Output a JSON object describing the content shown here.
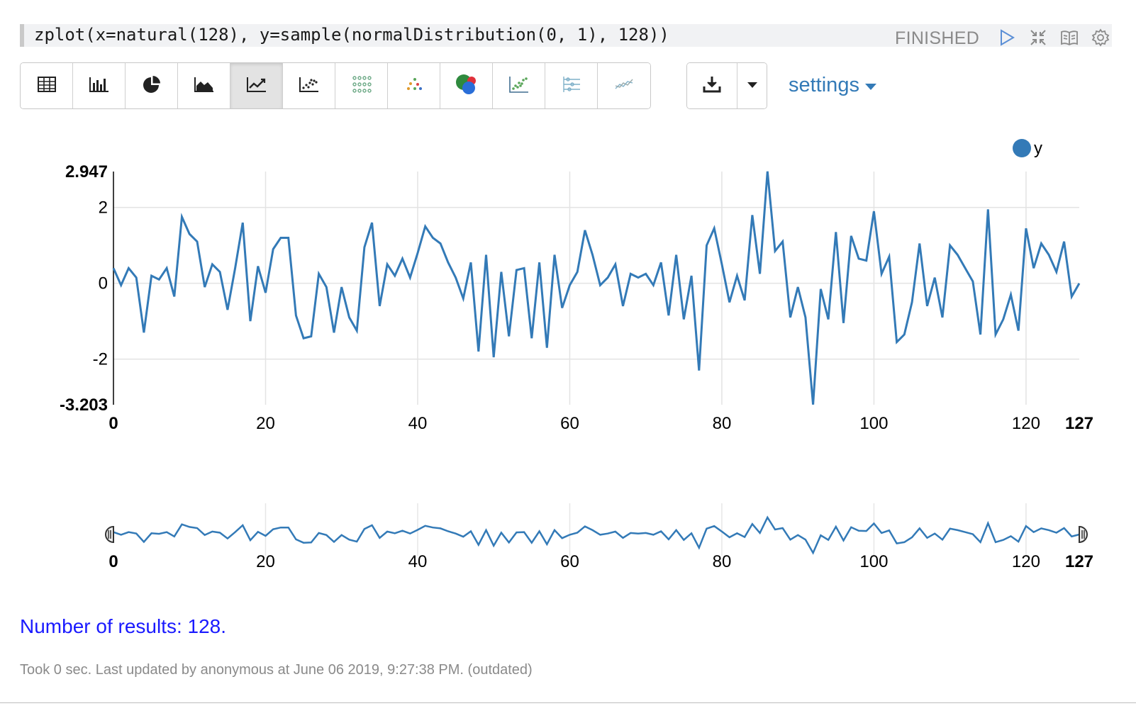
{
  "paragraph": {
    "code": "zplot(x=natural(128), y=sample(normalDistribution(0, 1), 128))",
    "status": "FINISHED",
    "icons": [
      "run-icon",
      "collapse-icon",
      "book-icon",
      "gear-icon"
    ]
  },
  "toolbar": {
    "viz_buttons": [
      {
        "name": "table-icon",
        "active": false
      },
      {
        "name": "bar-chart-icon",
        "active": false
      },
      {
        "name": "pie-chart-icon",
        "active": false
      },
      {
        "name": "area-chart-icon",
        "active": false
      },
      {
        "name": "line-chart-icon",
        "active": true
      },
      {
        "name": "scatter-chart-icon",
        "active": false
      },
      {
        "name": "heatmap-icon",
        "active": false
      },
      {
        "name": "dot-cluster-icon",
        "active": false
      },
      {
        "name": "bubble-chart-icon",
        "active": false
      },
      {
        "name": "scatter-trend-icon",
        "active": false
      },
      {
        "name": "parallel-coords-icon",
        "active": false
      },
      {
        "name": "multi-line-icon",
        "active": false
      }
    ],
    "download_icon": "download-icon",
    "dropdown_icon": "caret-down-icon",
    "settings_label": "settings"
  },
  "chart_data": {
    "type": "line",
    "legend": {
      "series_name": "y",
      "color": "#337ab7",
      "placement": "top-right"
    },
    "xlim": [
      0,
      127
    ],
    "ylim": [
      -3.203,
      2.947
    ],
    "x_ticks": [
      0,
      20,
      40,
      60,
      80,
      100,
      120,
      127
    ],
    "y_ticks": [
      -3.203,
      -2,
      0,
      2,
      2.947
    ],
    "grid": true,
    "navigator": true,
    "series": [
      {
        "name": "y",
        "color": "#337ab7",
        "x": [
          0,
          1,
          2,
          3,
          4,
          5,
          6,
          7,
          8,
          9,
          10,
          11,
          12,
          13,
          14,
          15,
          16,
          17,
          18,
          19,
          20,
          21,
          22,
          23,
          24,
          25,
          26,
          27,
          28,
          29,
          30,
          31,
          32,
          33,
          34,
          35,
          36,
          37,
          38,
          39,
          40,
          41,
          42,
          43,
          44,
          45,
          46,
          47,
          48,
          49,
          50,
          51,
          52,
          53,
          54,
          55,
          56,
          57,
          58,
          59,
          60,
          61,
          62,
          63,
          64,
          65,
          66,
          67,
          68,
          69,
          70,
          71,
          72,
          73,
          74,
          75,
          76,
          77,
          78,
          79,
          80,
          81,
          82,
          83,
          84,
          85,
          86,
          87,
          88,
          89,
          90,
          91,
          92,
          93,
          94,
          95,
          96,
          97,
          98,
          99,
          100,
          101,
          102,
          103,
          104,
          105,
          106,
          107,
          108,
          109,
          110,
          111,
          112,
          113,
          114,
          115,
          116,
          117,
          118,
          119,
          120,
          121,
          122,
          123,
          124,
          125,
          126,
          127
        ],
        "values": [
          0.4,
          -0.05,
          0.4,
          0.15,
          -1.3,
          0.2,
          0.1,
          0.4,
          -0.35,
          1.75,
          1.3,
          1.1,
          -0.1,
          0.5,
          0.3,
          -0.7,
          0.4,
          1.6,
          -1.0,
          0.45,
          -0.25,
          0.9,
          1.2,
          1.2,
          -0.85,
          -1.45,
          -1.4,
          0.25,
          -0.1,
          -1.3,
          -0.1,
          -0.9,
          -1.25,
          0.95,
          1.6,
          -0.6,
          0.5,
          0.2,
          0.65,
          0.15,
          0.8,
          1.5,
          1.2,
          1.05,
          0.55,
          0.15,
          -0.4,
          0.55,
          -1.8,
          0.75,
          -1.95,
          0.3,
          -1.4,
          0.35,
          0.4,
          -1.45,
          0.55,
          -1.7,
          0.75,
          -0.65,
          -0.05,
          0.3,
          1.4,
          0.75,
          -0.05,
          0.15,
          0.5,
          -0.6,
          0.25,
          0.15,
          0.25,
          -0.05,
          0.55,
          -0.85,
          0.75,
          -0.95,
          0.2,
          -2.3,
          1.0,
          1.45,
          0.5,
          -0.5,
          0.2,
          -0.45,
          1.8,
          0.25,
          2.95,
          0.85,
          1.1,
          -0.9,
          -0.1,
          -0.9,
          -3.2,
          -0.15,
          -0.95,
          1.35,
          -1.05,
          1.25,
          0.65,
          0.6,
          1.9,
          0.25,
          0.7,
          -1.55,
          -1.35,
          -0.5,
          1.05,
          -0.6,
          0.15,
          -0.9,
          1.0,
          0.75,
          0.4,
          0.05,
          -1.35,
          1.95,
          -1.35,
          -0.95,
          -0.3,
          -1.25,
          1.45,
          0.4,
          1.05,
          0.75,
          0.3,
          1.1,
          -0.35,
          0.0
        ]
      }
    ]
  },
  "results_text": "Number of results: 128.",
  "footer_text": "Took 0 sec. Last updated by anonymous at June 06 2019, 9:27:38 PM. (outdated)"
}
